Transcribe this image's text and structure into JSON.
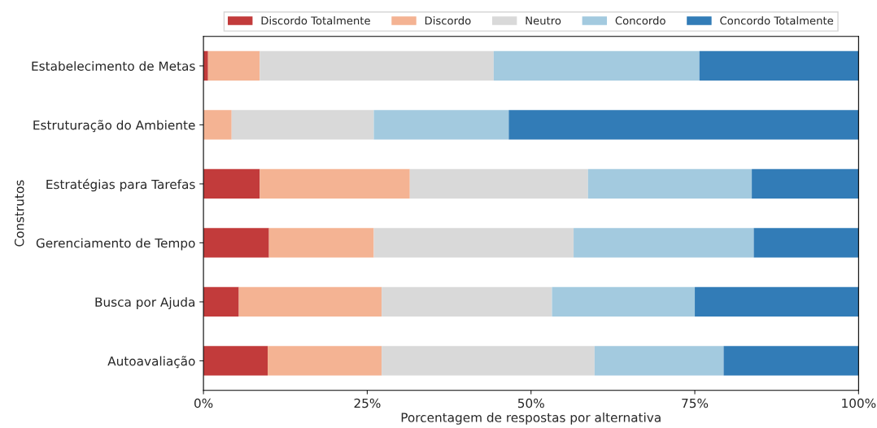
{
  "chart_data": {
    "type": "bar",
    "orientation": "horizontal",
    "stacked": true,
    "xlabel": "Porcentagem de respostas por alternativa",
    "ylabel": "Construtos",
    "categories": [
      "Estabelecimento de Metas",
      "Estruturação do Ambiente",
      "Estratégias para Tarefas",
      "Gerenciamento de Tempo",
      "Busca por Ajuda",
      "Autoavaliação"
    ],
    "series": [
      {
        "name": "Discordo Totalmente",
        "color": "#c23b3b",
        "values": [
          0.7,
          0,
          8.6,
          10.0,
          5.4,
          9.8
        ]
      },
      {
        "name": "Discordo",
        "color": "#f4b393",
        "values": [
          7.9,
          4.3,
          22.9,
          16.0,
          21.8,
          17.4
        ]
      },
      {
        "name": "Neutro",
        "color": "#d9d9d9",
        "values": [
          35.7,
          21.7,
          27.2,
          30.5,
          26.0,
          32.5
        ]
      },
      {
        "name": "Concordo",
        "color": "#a3cadf",
        "values": [
          31.4,
          20.6,
          25.0,
          27.5,
          21.8,
          19.7
        ]
      },
      {
        "name": "Concordo Totalmente",
        "color": "#327cb7",
        "values": [
          24.3,
          53.4,
          16.3,
          16.0,
          25.0,
          20.6
        ]
      }
    ],
    "xlim": [
      0,
      100
    ],
    "xticks": [
      {
        "value": 0,
        "label": "0%"
      },
      {
        "value": 25,
        "label": "25%"
      },
      {
        "value": 50,
        "label": "50%"
      },
      {
        "value": 75,
        "label": "75%"
      },
      {
        "value": 100,
        "label": "100%"
      }
    ],
    "legend": "top",
    "grid": false
  }
}
